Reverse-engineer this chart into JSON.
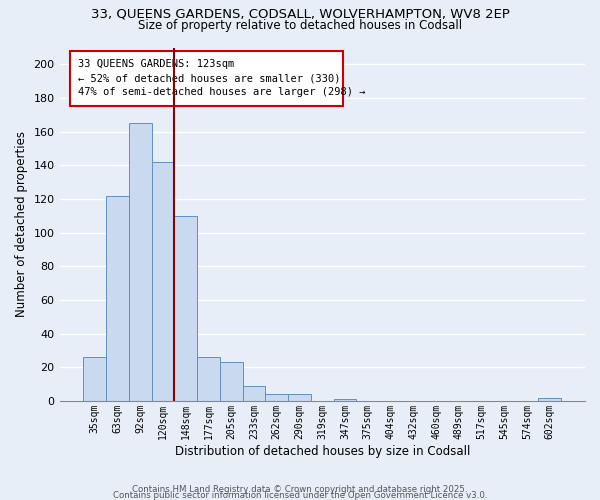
{
  "title_line1": "33, QUEENS GARDENS, CODSALL, WOLVERHAMPTON, WV8 2EP",
  "title_line2": "Size of property relative to detached houses in Codsall",
  "bar_labels": [
    "35sqm",
    "63sqm",
    "92sqm",
    "120sqm",
    "148sqm",
    "177sqm",
    "205sqm",
    "233sqm",
    "262sqm",
    "290sqm",
    "319sqm",
    "347sqm",
    "375sqm",
    "404sqm",
    "432sqm",
    "460sqm",
    "489sqm",
    "517sqm",
    "545sqm",
    "574sqm",
    "602sqm"
  ],
  "bar_values": [
    26,
    122,
    165,
    142,
    110,
    26,
    23,
    9,
    4,
    4,
    0,
    1,
    0,
    0,
    0,
    0,
    0,
    0,
    0,
    0,
    2
  ],
  "bar_color": "#c9d9f0",
  "bar_edge_color": "#6090c0",
  "annotation_text_line1": "33 QUEENS GARDENS: 123sqm",
  "annotation_text_line2": "← 52% of detached houses are smaller (330)",
  "annotation_text_line3": "47% of semi-detached houses are larger (298) →",
  "marker_bar_index": 3,
  "xlabel": "Distribution of detached houses by size in Codsall",
  "ylabel": "Number of detached properties",
  "ylim": [
    0,
    210
  ],
  "yticks": [
    0,
    20,
    40,
    60,
    80,
    100,
    120,
    140,
    160,
    180,
    200
  ],
  "footer_line1": "Contains HM Land Registry data © Crown copyright and database right 2025.",
  "footer_line2": "Contains public sector information licensed under the Open Government Licence v3.0.",
  "bg_color": "#e8eef8",
  "grid_color": "#ffffff",
  "marker_color": "#8b0000",
  "annotation_box_edge_color": "#cc0000",
  "annotation_box_face_color": "#ffffff"
}
